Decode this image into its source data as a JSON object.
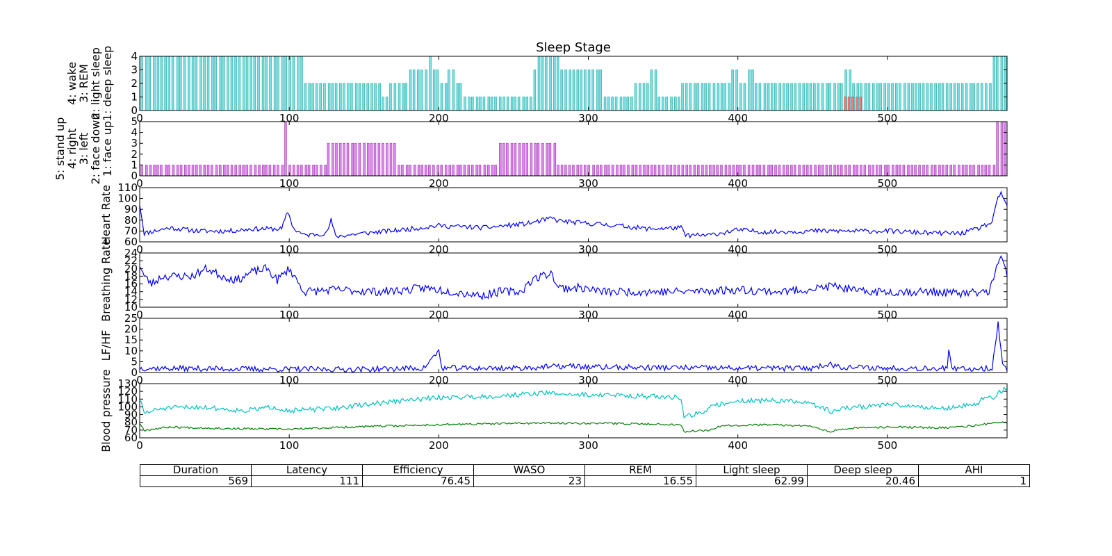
{
  "chart_data": [
    {
      "id": "sleep",
      "type": "bar",
      "title": "Sleep Stage",
      "ylabel_lines": [
        "4: wake",
        "3: REM",
        "2: light sleep",
        "1: deep sleep"
      ],
      "xlim": [
        0,
        580
      ],
      "ylim": [
        0,
        4
      ],
      "xticks": [
        0,
        100,
        200,
        300,
        400,
        500
      ],
      "xtick_labels": [
        "0",
        "100",
        "200",
        "300",
        "400",
        "500"
      ],
      "yticks": [
        0,
        1,
        2,
        3,
        4
      ],
      "ytick_labels": [
        "0",
        "1",
        "2",
        "3",
        "4"
      ],
      "color": "#7fdfdf",
      "edge_color": "#1aa8a8",
      "segments": [
        [
          0,
          4
        ],
        [
          110,
          2
        ],
        [
          130,
          2
        ],
        [
          160,
          1
        ],
        [
          165,
          2
        ],
        [
          178,
          4
        ],
        [
          180,
          3
        ],
        [
          185,
          3
        ],
        [
          192,
          4
        ],
        [
          195,
          3
        ],
        [
          200,
          2
        ],
        [
          205,
          3
        ],
        [
          210,
          2
        ],
        [
          215,
          1
        ],
        [
          220,
          1
        ],
        [
          230,
          1
        ],
        [
          250,
          1
        ],
        [
          255,
          1
        ],
        [
          262,
          3
        ],
        [
          265,
          4
        ],
        [
          270,
          4
        ],
        [
          275,
          4
        ],
        [
          280,
          3
        ],
        [
          300,
          3
        ],
        [
          305,
          3
        ],
        [
          310,
          1
        ],
        [
          318,
          1
        ],
        [
          330,
          2
        ],
        [
          340,
          3
        ],
        [
          345,
          1
        ],
        [
          355,
          1
        ],
        [
          362,
          2
        ],
        [
          375,
          2
        ],
        [
          390,
          2
        ],
        [
          395,
          3
        ],
        [
          400,
          2
        ],
        [
          405,
          3
        ],
        [
          410,
          2
        ],
        [
          420,
          2
        ],
        [
          430,
          2
        ],
        [
          440,
          2
        ],
        [
          450,
          2
        ],
        [
          454,
          4
        ],
        [
          456,
          2
        ],
        [
          465,
          2
        ],
        [
          470,
          3
        ],
        [
          475,
          2
        ],
        [
          490,
          2
        ],
        [
          500,
          2
        ],
        [
          520,
          2
        ],
        [
          540,
          2
        ],
        [
          560,
          2
        ],
        [
          570,
          4
        ],
        [
          580,
          4
        ]
      ],
      "bar_spacing": 2.6,
      "red_bars": {
        "color": "#f08080",
        "from": 471,
        "to": 483,
        "value": 1
      }
    },
    {
      "id": "posture",
      "type": "bar",
      "ylabel_lines": [
        "5: stand up",
        "4: right",
        "3: left",
        "2: face down",
        "1: face up"
      ],
      "xlim": [
        0,
        580
      ],
      "ylim": [
        0,
        5
      ],
      "xticks": [
        0,
        100,
        200,
        300,
        400,
        500
      ],
      "xtick_labels": [
        "0",
        "100",
        "200",
        "300",
        "400",
        "500"
      ],
      "yticks": [
        0,
        1,
        2,
        3,
        4,
        5
      ],
      "ytick_labels": [
        "0",
        "1",
        "2",
        "3",
        "4",
        "5"
      ],
      "color": "#dd88ee",
      "edge_color": "#a030b0",
      "segments": [
        [
          0,
          1
        ],
        [
          97,
          5
        ],
        [
          99,
          1
        ],
        [
          125,
          3
        ],
        [
          170,
          3
        ],
        [
          172,
          1
        ],
        [
          240,
          3
        ],
        [
          275,
          3
        ],
        [
          278,
          1
        ],
        [
          416,
          3
        ],
        [
          417,
          1
        ],
        [
          573,
          5
        ],
        [
          580,
          5
        ]
      ],
      "bar_spacing": 2.6
    },
    {
      "id": "hr",
      "type": "line",
      "ylabel": "Heart Rate",
      "xlim": [
        0,
        580
      ],
      "ylim": [
        60,
        110
      ],
      "xticks": [
        0,
        100,
        200,
        300,
        400,
        500
      ],
      "xtick_labels": [
        "0",
        "100",
        "200",
        "300",
        "400",
        "500"
      ],
      "yticks": [
        60,
        70,
        80,
        90,
        100,
        110
      ],
      "ytick_labels": [
        "60",
        "70",
        "80",
        "90",
        "100",
        "110"
      ],
      "series": [
        {
          "name": "Heart Rate",
          "color": "#0000ff",
          "base": [
            [
              0,
              95
            ],
            [
              3,
              68
            ],
            [
              20,
              73
            ],
            [
              40,
              70
            ],
            [
              60,
              70
            ],
            [
              75,
              72
            ],
            [
              90,
              72
            ],
            [
              95,
              72
            ],
            [
              99,
              88
            ],
            [
              103,
              72
            ],
            [
              110,
              66
            ],
            [
              125,
              68
            ],
            [
              128,
              80
            ],
            [
              131,
              65
            ],
            [
              150,
              68
            ],
            [
              175,
              71
            ],
            [
              200,
              75
            ],
            [
              230,
              73
            ],
            [
              260,
              77
            ],
            [
              270,
              80
            ],
            [
              276,
              82
            ],
            [
              278,
              80
            ],
            [
              290,
              78
            ],
            [
              320,
              75
            ],
            [
              340,
              72
            ],
            [
              362,
              73
            ],
            [
              365,
              66
            ],
            [
              380,
              66
            ],
            [
              400,
              71
            ],
            [
              420,
              69
            ],
            [
              450,
              70
            ],
            [
              470,
              70
            ],
            [
              500,
              70
            ],
            [
              530,
              68
            ],
            [
              550,
              68
            ],
            [
              560,
              72
            ],
            [
              570,
              78
            ],
            [
              574,
              100
            ],
            [
              576,
              106
            ],
            [
              580,
              92
            ]
          ],
          "noise": 2.2,
          "seed": 11
        }
      ]
    },
    {
      "id": "br",
      "type": "line",
      "ylabel": "Breathing Rate",
      "xlim": [
        0,
        580
      ],
      "ylim": [
        10,
        24
      ],
      "xticks": [
        0,
        100,
        200,
        300,
        400,
        500
      ],
      "xtick_labels": [
        "0",
        "100",
        "200",
        "300",
        "400",
        "500"
      ],
      "yticks": [
        10,
        12,
        14,
        16,
        18,
        20,
        22,
        24
      ],
      "ytick_labels": [
        "10",
        "12",
        "14",
        "16",
        "18",
        "20",
        "22",
        "24"
      ],
      "series": [
        {
          "name": "Breathing Rate",
          "color": "#0000ff",
          "base": [
            [
              0,
              21
            ],
            [
              3,
              18
            ],
            [
              8,
              16
            ],
            [
              15,
              18
            ],
            [
              35,
              18
            ],
            [
              45,
              20
            ],
            [
              55,
              18
            ],
            [
              65,
              17
            ],
            [
              75,
              19
            ],
            [
              85,
              20
            ],
            [
              92,
              17
            ],
            [
              100,
              20
            ],
            [
              105,
              17
            ],
            [
              110,
              14
            ],
            [
              130,
              14.5
            ],
            [
              160,
              14
            ],
            [
              180,
              14.5
            ],
            [
              190,
              15
            ],
            [
              210,
              14
            ],
            [
              230,
              13
            ],
            [
              240,
              14
            ],
            [
              255,
              14
            ],
            [
              262,
              17
            ],
            [
              275,
              19
            ],
            [
              280,
              15
            ],
            [
              295,
              15
            ],
            [
              310,
              14
            ],
            [
              330,
              14
            ],
            [
              360,
              14
            ],
            [
              400,
              14.5
            ],
            [
              430,
              14
            ],
            [
              455,
              15
            ],
            [
              465,
              15.5
            ],
            [
              480,
              14
            ],
            [
              500,
              14
            ],
            [
              530,
              14
            ],
            [
              550,
              13.5
            ],
            [
              568,
              14
            ],
            [
              572,
              19
            ],
            [
              576,
              23
            ],
            [
              580,
              18
            ]
          ],
          "noise": 1.1,
          "seed": 23
        }
      ]
    },
    {
      "id": "lfhf",
      "type": "line",
      "ylabel": "LF/HF",
      "xlim": [
        0,
        580
      ],
      "ylim": [
        0,
        25
      ],
      "xticks": [
        0,
        100,
        200,
        300,
        400,
        500
      ],
      "xtick_labels": [
        "0",
        "100",
        "200",
        "300",
        "400",
        "500"
      ],
      "yticks": [
        0,
        5,
        10,
        15,
        20,
        25
      ],
      "ytick_labels": [
        "0",
        "5",
        "10",
        "15",
        "20",
        "25"
      ],
      "series": [
        {
          "name": "LF/HF",
          "color": "#0000ff",
          "base": [
            [
              0,
              2
            ],
            [
              100,
              1.5
            ],
            [
              150,
              1.5
            ],
            [
              190,
              2
            ],
            [
              200,
              10
            ],
            [
              202,
              2
            ],
            [
              250,
              2
            ],
            [
              290,
              3
            ],
            [
              300,
              2.5
            ],
            [
              400,
              2
            ],
            [
              450,
              2
            ],
            [
              460,
              4
            ],
            [
              470,
              2.5
            ],
            [
              500,
              2
            ],
            [
              540,
              2
            ],
            [
              541,
              10
            ],
            [
              543,
              1.5
            ],
            [
              570,
              2
            ],
            [
              574,
              23
            ],
            [
              577,
              3
            ],
            [
              580,
              2
            ]
          ],
          "noise": 1.3,
          "seed": 37
        }
      ]
    },
    {
      "id": "bp",
      "type": "line",
      "ylabel": "Blood pressure",
      "xlim": [
        0,
        580
      ],
      "ylim": [
        60,
        130
      ],
      "xticks": [
        0,
        100,
        200,
        300,
        400,
        500
      ],
      "xtick_labels": [
        "0",
        "100",
        "200",
        "300",
        "400",
        "500"
      ],
      "yticks": [
        60,
        70,
        80,
        90,
        100,
        110,
        120,
        130
      ],
      "ytick_labels": [
        "60",
        "70",
        "80",
        "90",
        "100",
        "110",
        "120",
        "130"
      ],
      "series": [
        {
          "name": "systolic",
          "color": "#00bfbf",
          "base": [
            [
              0,
              110
            ],
            [
              3,
              92
            ],
            [
              15,
              98
            ],
            [
              40,
              100
            ],
            [
              70,
              95
            ],
            [
              90,
              100
            ],
            [
              100,
              95
            ],
            [
              130,
              98
            ],
            [
              160,
              105
            ],
            [
              200,
              112
            ],
            [
              240,
              114
            ],
            [
              270,
              118
            ],
            [
              290,
              116
            ],
            [
              320,
              115
            ],
            [
              362,
              112
            ],
            [
              364,
              88
            ],
            [
              375,
              92
            ],
            [
              385,
              102
            ],
            [
              400,
              108
            ],
            [
              430,
              108
            ],
            [
              450,
              104
            ],
            [
              462,
              94
            ],
            [
              470,
              98
            ],
            [
              500,
              103
            ],
            [
              540,
              98
            ],
            [
              560,
              104
            ],
            [
              566,
              114
            ],
            [
              570,
              110
            ],
            [
              578,
              124
            ],
            [
              580,
              122
            ]
          ],
          "noise": 3.2,
          "seed": 51
        },
        {
          "name": "diastolic",
          "color": "#007f00",
          "base": [
            [
              0,
              79
            ],
            [
              3,
              70
            ],
            [
              20,
              74
            ],
            [
              60,
              72
            ],
            [
              100,
              71
            ],
            [
              140,
              74
            ],
            [
              200,
              77
            ],
            [
              260,
              79
            ],
            [
              300,
              79
            ],
            [
              340,
              78
            ],
            [
              362,
              77
            ],
            [
              364,
              68
            ],
            [
              380,
              70
            ],
            [
              390,
              76
            ],
            [
              420,
              77
            ],
            [
              450,
              75
            ],
            [
              462,
              68
            ],
            [
              470,
              72
            ],
            [
              500,
              74
            ],
            [
              540,
              73
            ],
            [
              560,
              76
            ],
            [
              570,
              79
            ],
            [
              580,
              80
            ]
          ],
          "noise": 1.3,
          "seed": 67
        }
      ]
    }
  ],
  "table": {
    "headers": [
      "Duration",
      "Latency",
      "Efficiency",
      "WASO",
      "REM",
      "Light sleep",
      "Deep sleep",
      "AHI"
    ],
    "values": [
      "569",
      "111",
      "76.45",
      "23",
      "16.55",
      "62.99",
      "20.46",
      "1"
    ]
  }
}
